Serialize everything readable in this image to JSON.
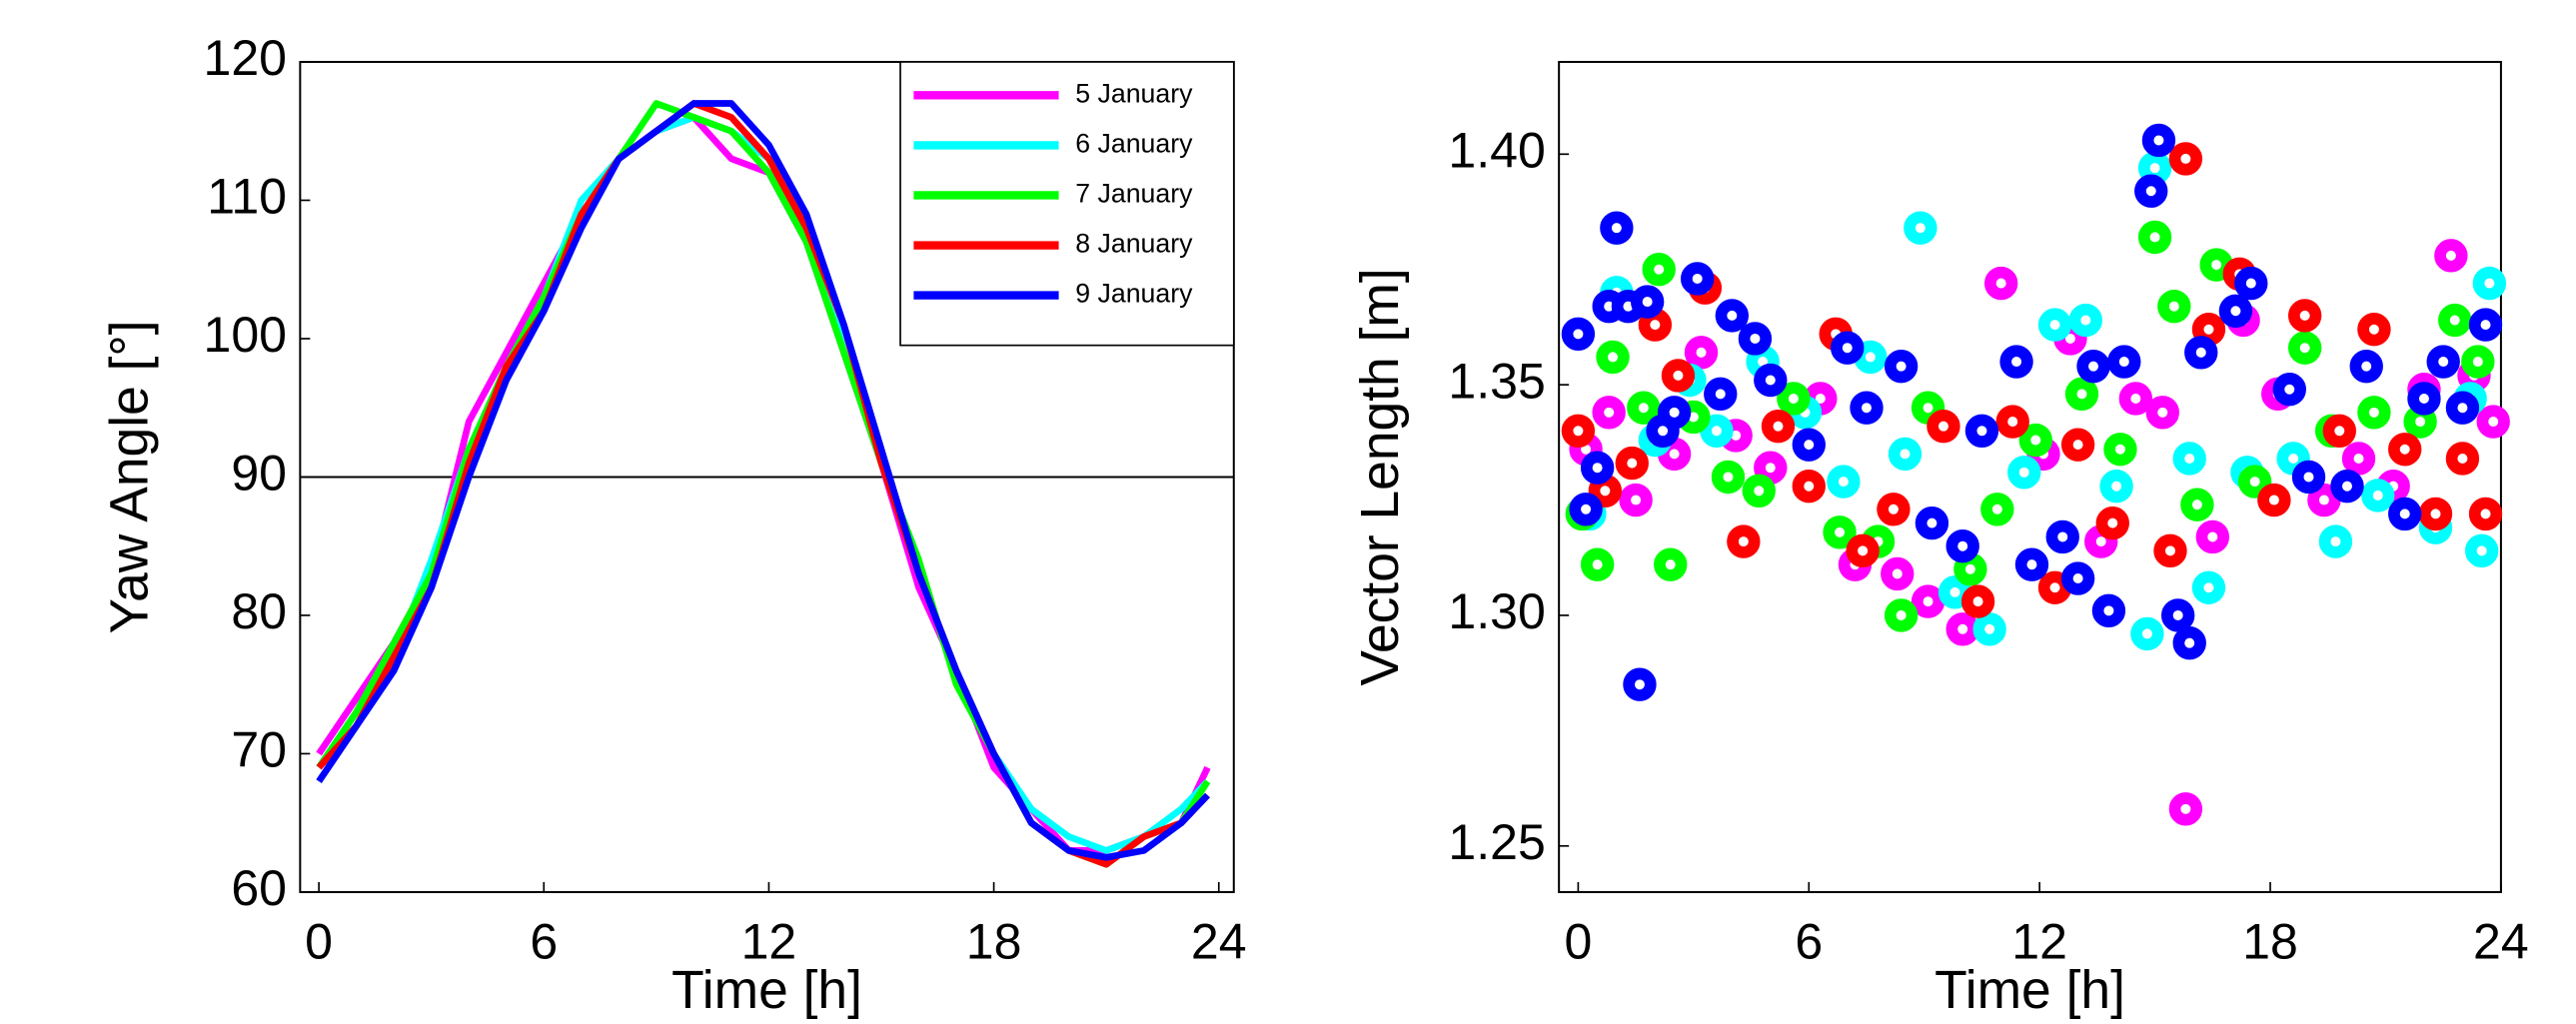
{
  "chart_data": [
    {
      "type": "line",
      "xlabel": "Time [h]",
      "ylabel": "Yaw Angle [°]",
      "xlim": [
        -0.5,
        24.4
      ],
      "xticks": [
        0,
        6,
        12,
        18,
        24
      ],
      "ylim": [
        60,
        120
      ],
      "yticks": [
        60,
        70,
        80,
        90,
        100,
        110,
        120
      ],
      "reference_line": 90,
      "legend": "upper right",
      "x": [
        0,
        1,
        2,
        3,
        4,
        5,
        6,
        7,
        8,
        9,
        10,
        11,
        12,
        13,
        14,
        15,
        16,
        17,
        18,
        19,
        20,
        21,
        22,
        23,
        23.7
      ],
      "series": [
        {
          "name": "5 January",
          "color": "#ff00ff",
          "values": [
            70,
            74,
            78,
            83,
            94,
            99,
            104,
            109,
            113,
            115,
            116,
            113,
            112,
            107,
            99,
            91,
            82,
            76,
            69,
            66,
            63,
            63,
            64,
            65,
            69
          ]
        },
        {
          "name": "6 January",
          "color": "#00ffff",
          "values": [
            69,
            73,
            77,
            84,
            92,
            98,
            103,
            110,
            113,
            115,
            116,
            115,
            113,
            108,
            100,
            91,
            83,
            76,
            70,
            66,
            64,
            63,
            64,
            66,
            68
          ]
        },
        {
          "name": "7 January",
          "color": "#00ff00",
          "values": [
            69,
            73,
            78,
            83,
            92,
            98,
            103,
            109,
            113,
            117,
            116,
            115,
            112,
            107,
            99,
            91,
            84,
            75,
            70,
            65,
            63,
            62,
            64,
            65,
            68
          ]
        },
        {
          "name": "8 January",
          "color": "#ff0000",
          "values": [
            69,
            72,
            77,
            82,
            91,
            98,
            102,
            109,
            113,
            115,
            117,
            116,
            113,
            108,
            101,
            91,
            83,
            76,
            70,
            65,
            63,
            62,
            64,
            65,
            67
          ]
        },
        {
          "name": "9 January",
          "color": "#0000ff",
          "values": [
            68,
            72,
            76,
            82,
            90,
            97,
            102,
            108,
            113,
            115,
            117,
            117,
            114,
            109,
            101,
            92,
            83,
            76,
            70,
            65,
            63,
            62.5,
            63,
            65,
            67
          ]
        }
      ]
    },
    {
      "type": "scatter",
      "xlabel": "Time [h]",
      "ylabel": "Vector Length [m]",
      "xlim": [
        -0.5,
        24
      ],
      "xticks": [
        0,
        6,
        12,
        18,
        24
      ],
      "ylim": [
        1.24,
        1.42
      ],
      "yticks": [
        1.25,
        {
          "value": 1.3,
          "label": "1.30"
        },
        1.35,
        {
          "value": 1.4,
          "label": "1.40"
        }
      ],
      "series": [
        {
          "name": "5 January",
          "color": "#ff00ff",
          "x": [
            0.2,
            0.8,
            1.5,
            2.5,
            3.2,
            4.1,
            5.0,
            6.3,
            7.2,
            8.3,
            9.1,
            10.0,
            11.0,
            12.1,
            12.8,
            13.6,
            14.5,
            15.2,
            15.8,
            16.5,
            17.3,
            18.2,
            19.4,
            20.3,
            21.2,
            22.0,
            22.7,
            23.3,
            23.8
          ],
          "values": [
            1.336,
            1.344,
            1.325,
            1.335,
            1.357,
            1.339,
            1.332,
            1.347,
            1.311,
            1.309,
            1.303,
            1.297,
            1.372,
            1.335,
            1.36,
            1.316,
            1.347,
            1.344,
            1.258,
            1.317,
            1.364,
            1.348,
            1.325,
            1.334,
            1.328,
            1.349,
            1.378,
            1.352,
            1.342
          ]
        },
        {
          "name": "6 January",
          "color": "#00ffff",
          "x": [
            0.3,
            1.0,
            2.0,
            2.9,
            3.6,
            4.8,
            5.9,
            6.9,
            7.6,
            8.5,
            8.9,
            9.8,
            10.7,
            11.6,
            12.4,
            13.2,
            14.0,
            14.8,
            15.0,
            15.9,
            16.4,
            17.4,
            18.6,
            19.7,
            20.8,
            22.3,
            23.2,
            23.7,
            23.5
          ],
          "values": [
            1.322,
            1.37,
            1.338,
            1.351,
            1.34,
            1.355,
            1.344,
            1.329,
            1.356,
            1.335,
            1.384,
            1.305,
            1.297,
            1.331,
            1.363,
            1.364,
            1.328,
            1.296,
            1.397,
            1.334,
            1.306,
            1.331,
            1.334,
            1.316,
            1.326,
            1.319,
            1.347,
            1.372,
            1.314
          ]
        },
        {
          "name": "7 January",
          "color": "#00ff00",
          "x": [
            0.1,
            0.5,
            0.9,
            1.7,
            2.1,
            2.4,
            3.0,
            3.9,
            4.7,
            5.6,
            6.8,
            7.8,
            8.4,
            9.1,
            10.2,
            10.9,
            11.9,
            13.1,
            14.1,
            15.0,
            15.5,
            16.1,
            16.6,
            17.6,
            18.9,
            19.6,
            20.7,
            21.9,
            22.8,
            23.4
          ],
          "values": [
            1.322,
            1.311,
            1.356,
            1.345,
            1.375,
            1.311,
            1.343,
            1.33,
            1.327,
            1.347,
            1.318,
            1.316,
            1.3,
            1.345,
            1.31,
            1.323,
            1.338,
            1.348,
            1.336,
            1.382,
            1.367,
            1.324,
            1.376,
            1.329,
            1.358,
            1.34,
            1.344,
            1.342,
            1.364,
            1.355
          ]
        },
        {
          "name": "8 January",
          "color": "#ff0000",
          "x": [
            0,
            0.7,
            1.4,
            2.0,
            2.6,
            3.3,
            4.3,
            5.2,
            6.0,
            6.7,
            7.4,
            8.2,
            9.5,
            10.4,
            11.3,
            12.4,
            13.0,
            13.9,
            15.4,
            15.8,
            16.4,
            17.2,
            18.1,
            18.9,
            19.8,
            20.7,
            21.5,
            22.3,
            23.0,
            23.6
          ],
          "values": [
            1.34,
            1.327,
            1.333,
            1.363,
            1.352,
            1.371,
            1.316,
            1.341,
            1.328,
            1.361,
            1.314,
            1.323,
            1.341,
            1.303,
            1.342,
            1.306,
            1.337,
            1.32,
            1.314,
            1.399,
            1.362,
            1.374,
            1.325,
            1.365,
            1.34,
            1.362,
            1.336,
            1.322,
            1.334,
            1.322
          ]
        },
        {
          "name": "9 January",
          "color": "#0000ff",
          "x": [
            0,
            0.2,
            0.5,
            0.8,
            1.0,
            1.3,
            1.6,
            1.8,
            2.2,
            2.5,
            3.1,
            3.7,
            4.0,
            4.6,
            5.0,
            6.0,
            7.0,
            7.5,
            8.4,
            9.2,
            10.0,
            10.5,
            11.4,
            11.8,
            12.6,
            13.0,
            13.4,
            13.8,
            14.2,
            14.9,
            15.1,
            15.6,
            15.9,
            16.2,
            17.1,
            17.5,
            18.5,
            19.0,
            20.0,
            20.5,
            21.5,
            22.0,
            22.5,
            23.0,
            23.6
          ],
          "values": [
            1.361,
            1.323,
            1.332,
            1.367,
            1.384,
            1.367,
            1.285,
            1.368,
            1.34,
            1.344,
            1.373,
            1.348,
            1.365,
            1.36,
            1.351,
            1.337,
            1.358,
            1.345,
            1.354,
            1.32,
            1.315,
            1.34,
            1.355,
            1.311,
            1.317,
            1.308,
            1.354,
            1.301,
            1.355,
            1.392,
            1.403,
            1.3,
            1.294,
            1.357,
            1.366,
            1.372,
            1.349,
            1.33,
            1.328,
            1.354,
            1.322,
            1.347,
            1.355,
            1.345,
            1.363
          ]
        }
      ]
    }
  ]
}
